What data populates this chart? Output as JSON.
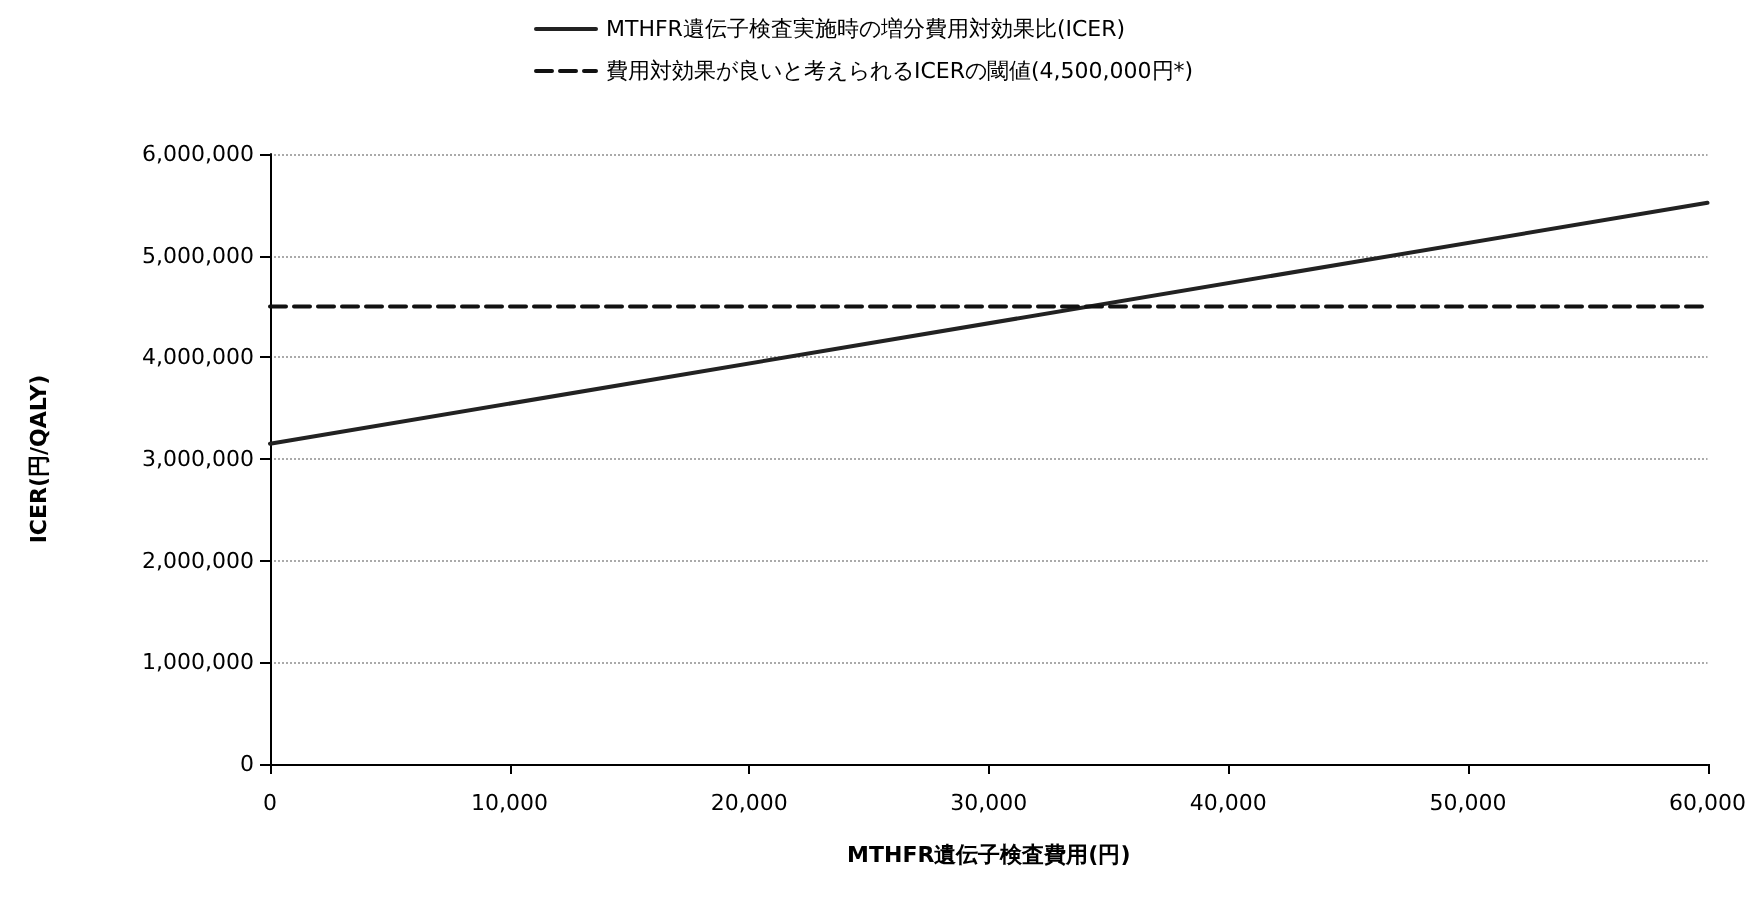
{
  "chart_data": {
    "type": "line",
    "xlabel": "MTHFR遺伝子検査費用(円)",
    "ylabel": "ICER(円/QALY)",
    "x": [
      0,
      60000
    ],
    "series": [
      {
        "name": "MTHFR遺伝子検査実施時の増分費用対効果比(ICER)",
        "color": "#222222",
        "values": [
          3150000,
          5520000
        ],
        "line_style": "solid"
      },
      {
        "name": "費用対効果が良いと考えられるICERの閾値(4,500,000円*)",
        "color": "#111111",
        "values": [
          4500000,
          4500000
        ],
        "line_style": "dashed"
      }
    ],
    "xlim": [
      0,
      60000
    ],
    "xticks": [
      0,
      {
        "value": 10000,
        "label": "10,000"
      },
      {
        "value": 20000,
        "label": "20,000"
      },
      {
        "value": 30000,
        "label": "30,000"
      },
      {
        "value": 40000,
        "label": "40,000"
      },
      {
        "value": 50000,
        "label": "50,000"
      },
      {
        "value": 60000,
        "label": "60,000"
      }
    ],
    "ylim": [
      0,
      6000000
    ],
    "yticks": [
      0,
      {
        "value": 1000000,
        "label": "1,000,000"
      },
      {
        "value": 2000000,
        "label": "2,000,000"
      },
      {
        "value": 3000000,
        "label": "3,000,000"
      },
      {
        "value": 4000000,
        "label": "4,000,000"
      },
      {
        "value": 5000000,
        "label": "5,000,000"
      },
      {
        "value": 6000000,
        "label": "6,000,000"
      }
    ],
    "grid": "y",
    "legend": "top",
    "marker": "none"
  }
}
